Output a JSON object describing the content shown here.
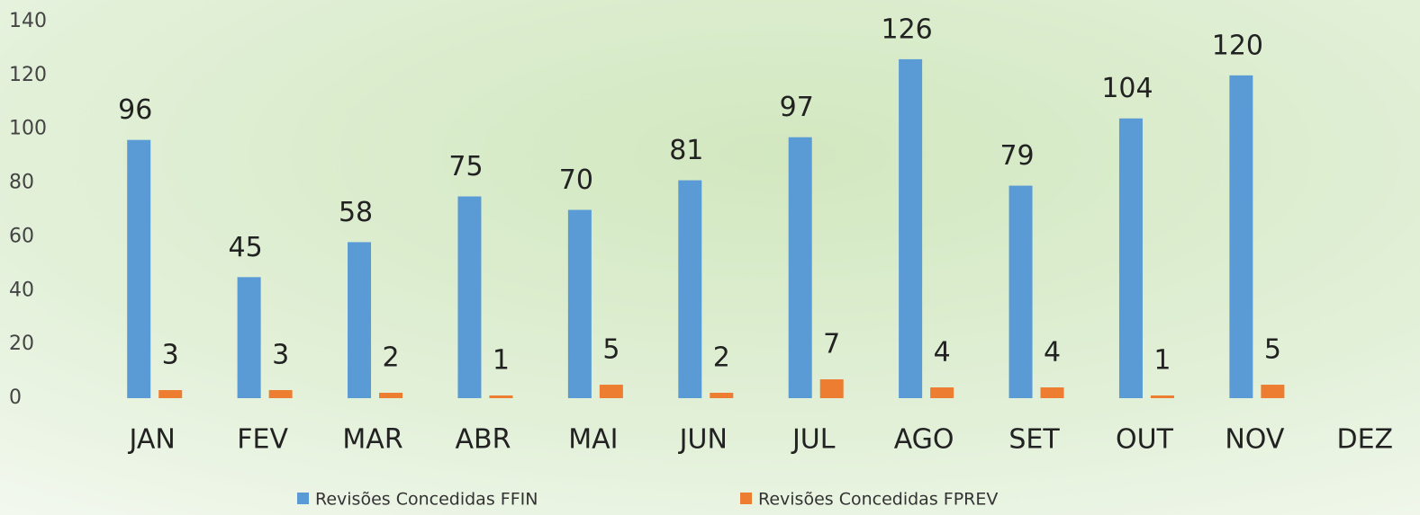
{
  "chart_data": {
    "type": "bar",
    "categories": [
      "JAN",
      "FEV",
      "MAR",
      "ABR",
      "MAI",
      "JUN",
      "JUL",
      "AGO",
      "SET",
      "OUT",
      "NOV",
      "DEZ"
    ],
    "series": [
      {
        "name": "Revisões Concedidas FFIN",
        "color": "#5b9bd5",
        "values": [
          96,
          45,
          58,
          75,
          70,
          81,
          97,
          126,
          79,
          104,
          120,
          null
        ]
      },
      {
        "name": "Revisões Concedidas FPREV",
        "color": "#ed7d31",
        "values": [
          3,
          3,
          2,
          1,
          5,
          2,
          7,
          4,
          4,
          1,
          5,
          null
        ]
      }
    ],
    "ylim": [
      0,
      140
    ],
    "yticks": [
      0,
      20,
      40,
      60,
      80,
      100,
      120,
      140
    ],
    "grid": false,
    "legend": "bottom"
  }
}
